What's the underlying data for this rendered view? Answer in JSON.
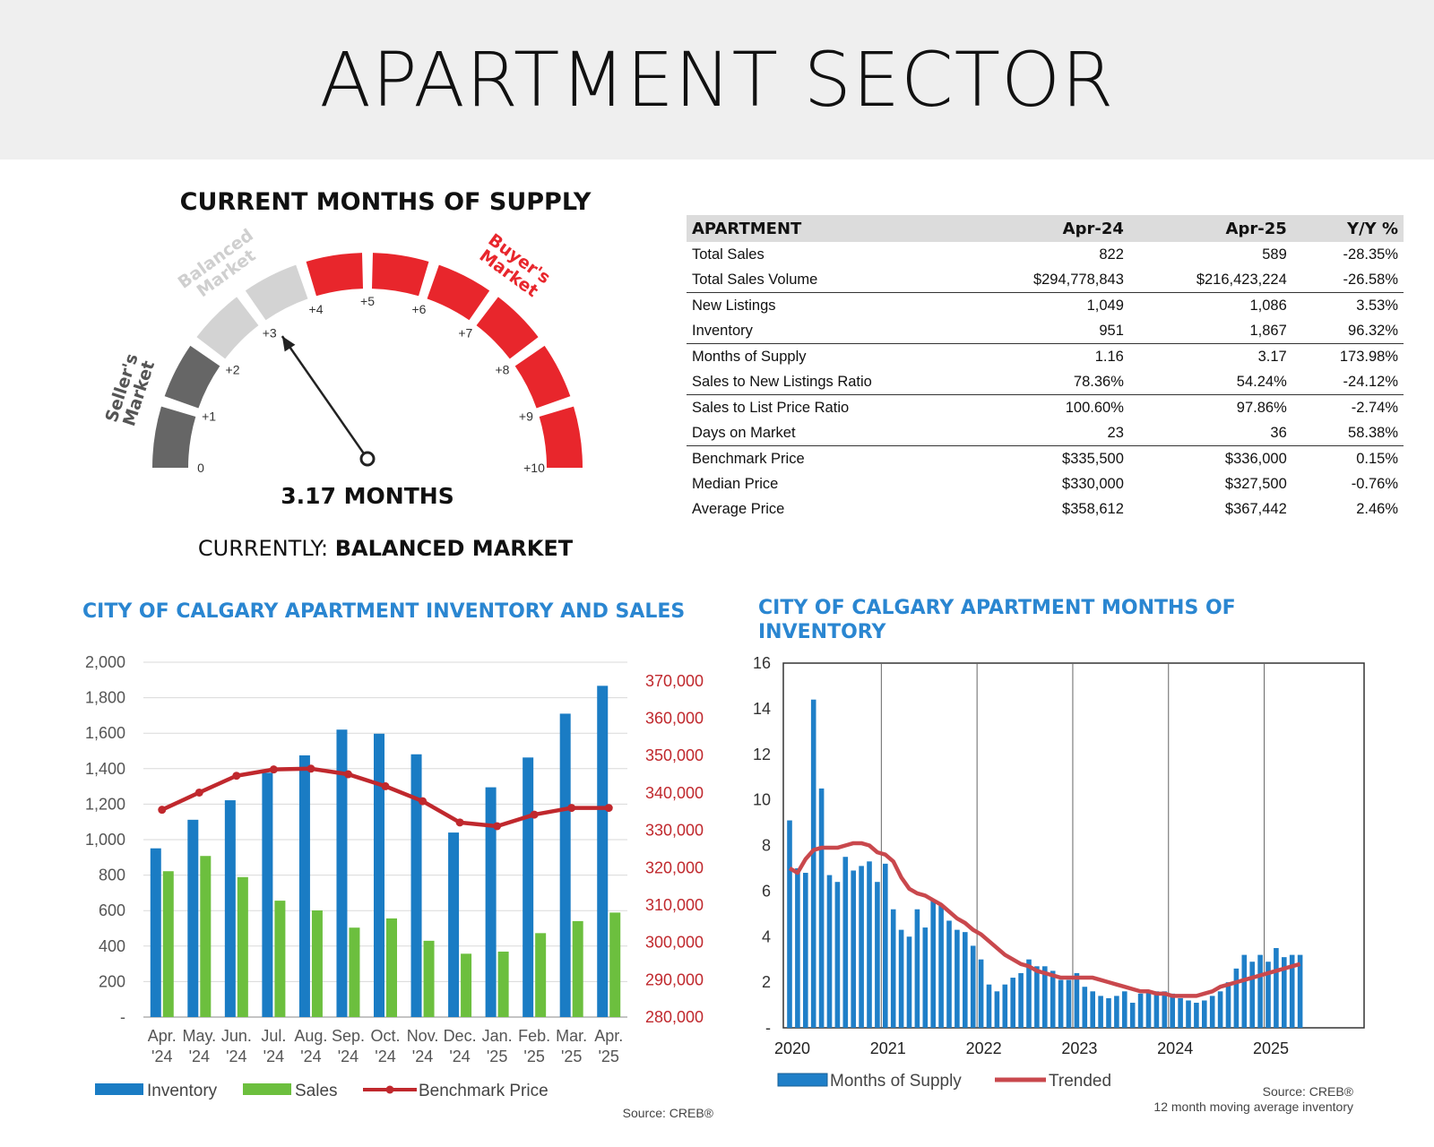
{
  "page": {
    "title": "APARTMENT SECTOR"
  },
  "gauge": {
    "title": "CURRENT MONTHS OF SUPPLY",
    "value": 3.17,
    "value_text": "3.17 MONTHS",
    "currently_label": "CURRENTLY: ",
    "currently_value": "BALANCED MARKET",
    "ticks": [
      "0",
      "+1",
      "+2",
      "+3",
      "+4",
      "+5",
      "+6",
      "+7",
      "+8",
      "+9",
      "+10"
    ],
    "zones": [
      {
        "label": "Seller's Market",
        "color": "#666666"
      },
      {
        "label": "Balanced Market",
        "color": "#d3d3d3"
      },
      {
        "label": "Buyer's Market",
        "color": "#e8262c"
      }
    ]
  },
  "stats_table": {
    "headers": [
      "APARTMENT",
      "Apr-24",
      "Apr-25",
      "Y/Y %"
    ],
    "rows": [
      [
        "Total Sales",
        "822",
        "589",
        "-28.35%"
      ],
      [
        "Total Sales Volume",
        "$294,778,843",
        "$216,423,224",
        "-26.58%"
      ],
      [
        "New Listings",
        "1,049",
        "1,086",
        "3.53%"
      ],
      [
        "Inventory",
        "951",
        "1,867",
        "96.32%"
      ],
      [
        "Months of Supply",
        "1.16",
        "3.17",
        "173.98%"
      ],
      [
        "Sales to New Listings Ratio",
        "78.36%",
        "54.24%",
        "-24.12%"
      ],
      [
        "Sales to List Price Ratio",
        "100.60%",
        "97.86%",
        "-2.74%"
      ],
      [
        "Days on Market",
        "23",
        "36",
        "58.38%"
      ],
      [
        "Benchmark Price",
        "$335,500",
        "$336,000",
        "0.15%"
      ],
      [
        "Median Price",
        "$330,000",
        "$327,500",
        "-0.76%"
      ],
      [
        "Average Price",
        "$358,612",
        "$367,442",
        "2.46%"
      ]
    ]
  },
  "chart_data": [
    {
      "type": "bar",
      "title": "CITY OF CALGARY APARTMENT INVENTORY AND SALES",
      "categories": [
        "Apr.\n'24",
        "May.\n'24",
        "Jun.\n'24",
        "Jul.\n'24",
        "Aug.\n'24",
        "Sep.\n'24",
        "Oct.\n'24",
        "Nov.\n'24",
        "Dec.\n'24",
        "Jan.\n'25",
        "Feb.\n'25",
        "Mar.\n'25",
        "Apr.\n'25"
      ],
      "series": [
        {
          "name": "Inventory",
          "type": "bar",
          "axis": "left",
          "color": "#1a7cc4",
          "values": [
            951,
            1112,
            1222,
            1377,
            1475,
            1620,
            1597,
            1481,
            1040,
            1295,
            1463,
            1710,
            1867
          ]
        },
        {
          "name": "Sales",
          "type": "bar",
          "axis": "left",
          "color": "#6cbf3e",
          "values": [
            822,
            908,
            789,
            656,
            601,
            504,
            556,
            430,
            357,
            369,
            473,
            541,
            589
          ]
        },
        {
          "name": "Benchmark Price",
          "type": "line",
          "axis": "right",
          "color": "#c0282d",
          "values": [
            335500,
            340100,
            344600,
            346300,
            346500,
            345000,
            341800,
            337800,
            332100,
            331100,
            334200,
            336000,
            336000
          ]
        }
      ],
      "ylim": [
        0,
        2000
      ],
      "yticks": [
        "-",
        "200",
        "400",
        "600",
        "800",
        "1,000",
        "1,200",
        "1,400",
        "1,600",
        "1,800",
        "2,000"
      ],
      "y2lim": [
        280000,
        375000
      ],
      "y2ticks": [
        "280,000",
        "290,000",
        "300,000",
        "310,000",
        "320,000",
        "330,000",
        "340,000",
        "350,000",
        "360,000",
        "370,000"
      ],
      "legend": [
        "Inventory",
        "Sales",
        "Benchmark Price"
      ],
      "legend_position": "bottom",
      "source": "Source: CREB®"
    },
    {
      "type": "bar",
      "title": "CITY OF CALGARY APARTMENT MONTHS OF INVENTORY",
      "x_labels": [
        "2020",
        "2021",
        "2022",
        "2023",
        "2024",
        "2025"
      ],
      "series": [
        {
          "name": "Months of Supply",
          "type": "bar",
          "color": "#1f7fc8",
          "values": [
            9.1,
            7.0,
            6.8,
            14.4,
            10.5,
            6.7,
            6.4,
            7.5,
            6.9,
            7.1,
            7.3,
            6.4,
            7.2,
            5.2,
            4.3,
            4.0,
            5.2,
            4.4,
            5.6,
            5.4,
            4.7,
            4.3,
            4.2,
            3.6,
            3.0,
            1.9,
            1.6,
            1.9,
            2.2,
            2.4,
            3.0,
            2.7,
            2.7,
            2.5,
            2.1,
            2.1,
            2.4,
            1.8,
            1.6,
            1.4,
            1.3,
            1.4,
            1.6,
            1.1,
            1.5,
            1.6,
            1.6,
            1.6,
            1.5,
            1.3,
            1.2,
            1.1,
            1.2,
            1.4,
            1.6,
            2.0,
            2.6,
            3.2,
            2.9,
            3.2,
            2.9,
            3.5,
            3.1,
            3.2,
            3.2
          ]
        },
        {
          "name": "Trended",
          "type": "line",
          "color": "#c9484d",
          "values": [
            7.0,
            6.8,
            7.4,
            7.8,
            7.9,
            7.9,
            7.9,
            8.0,
            8.1,
            8.1,
            8.0,
            7.7,
            7.6,
            7.3,
            6.6,
            6.1,
            5.9,
            5.8,
            5.6,
            5.4,
            5.1,
            4.8,
            4.6,
            4.3,
            4.1,
            3.8,
            3.5,
            3.2,
            3.0,
            2.8,
            2.7,
            2.5,
            2.4,
            2.3,
            2.2,
            2.2,
            2.2,
            2.2,
            2.2,
            2.1,
            2.0,
            1.9,
            1.8,
            1.7,
            1.6,
            1.6,
            1.5,
            1.5,
            1.4,
            1.4,
            1.4,
            1.4,
            1.5,
            1.6,
            1.8,
            1.9,
            2.0,
            2.1,
            2.2,
            2.3,
            2.4,
            2.5,
            2.6,
            2.7,
            2.8
          ]
        }
      ],
      "ylim": [
        0,
        16
      ],
      "yticks": [
        "-",
        "2",
        "4",
        "6",
        "8",
        "10",
        "12",
        "14",
        "16"
      ],
      "legend": [
        "Months of Supply",
        "Trended"
      ],
      "legend_position": "bottom",
      "source": "Source: CREB®",
      "note": "12 month moving average inventory"
    }
  ]
}
